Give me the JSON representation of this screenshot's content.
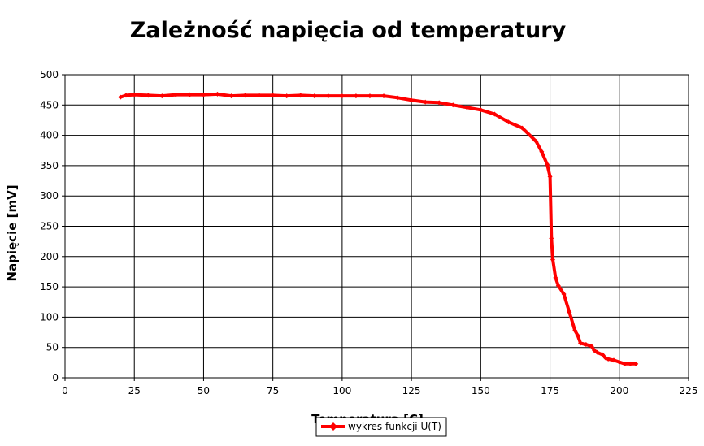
{
  "chart_data": {
    "type": "line",
    "title": "Zależność napięcia od temperatury",
    "xlabel": "Temperatura [C]",
    "ylabel": "Napięcie [mV]",
    "xlim": [
      0,
      225
    ],
    "ylim": [
      0,
      500
    ],
    "xticks": [
      0,
      25,
      50,
      75,
      100,
      125,
      150,
      175,
      200,
      225
    ],
    "yticks": [
      0,
      50,
      100,
      150,
      200,
      250,
      300,
      350,
      400,
      450,
      500
    ],
    "grid": true,
    "legend_position": "bottom",
    "series": [
      {
        "name": "wykres funkcji U(T)",
        "color": "#ff0000",
        "marker": "diamond",
        "x": [
          20,
          22,
          25,
          30,
          35,
          40,
          45,
          50,
          55,
          60,
          65,
          70,
          75,
          80,
          85,
          90,
          95,
          100,
          105,
          110,
          115,
          120,
          125,
          130,
          135,
          140,
          145,
          150,
          155,
          160,
          165,
          170,
          172,
          174,
          175,
          175.5,
          176,
          177,
          178,
          180,
          182,
          184,
          185,
          186,
          188,
          190,
          191,
          192,
          194,
          195,
          196,
          198,
          200,
          202,
          204,
          206
        ],
        "y": [
          463,
          466,
          467,
          466,
          465,
          467,
          467,
          467,
          468,
          465,
          466,
          466,
          466,
          465,
          466,
          465,
          465,
          465,
          465,
          465,
          465,
          462,
          458,
          455,
          454,
          450,
          446,
          442,
          435,
          422,
          412,
          390,
          373,
          352,
          332,
          230,
          195,
          165,
          152,
          138,
          108,
          78,
          70,
          57,
          55,
          52,
          45,
          42,
          38,
          33,
          31,
          29,
          26,
          23,
          23,
          23
        ]
      }
    ]
  }
}
